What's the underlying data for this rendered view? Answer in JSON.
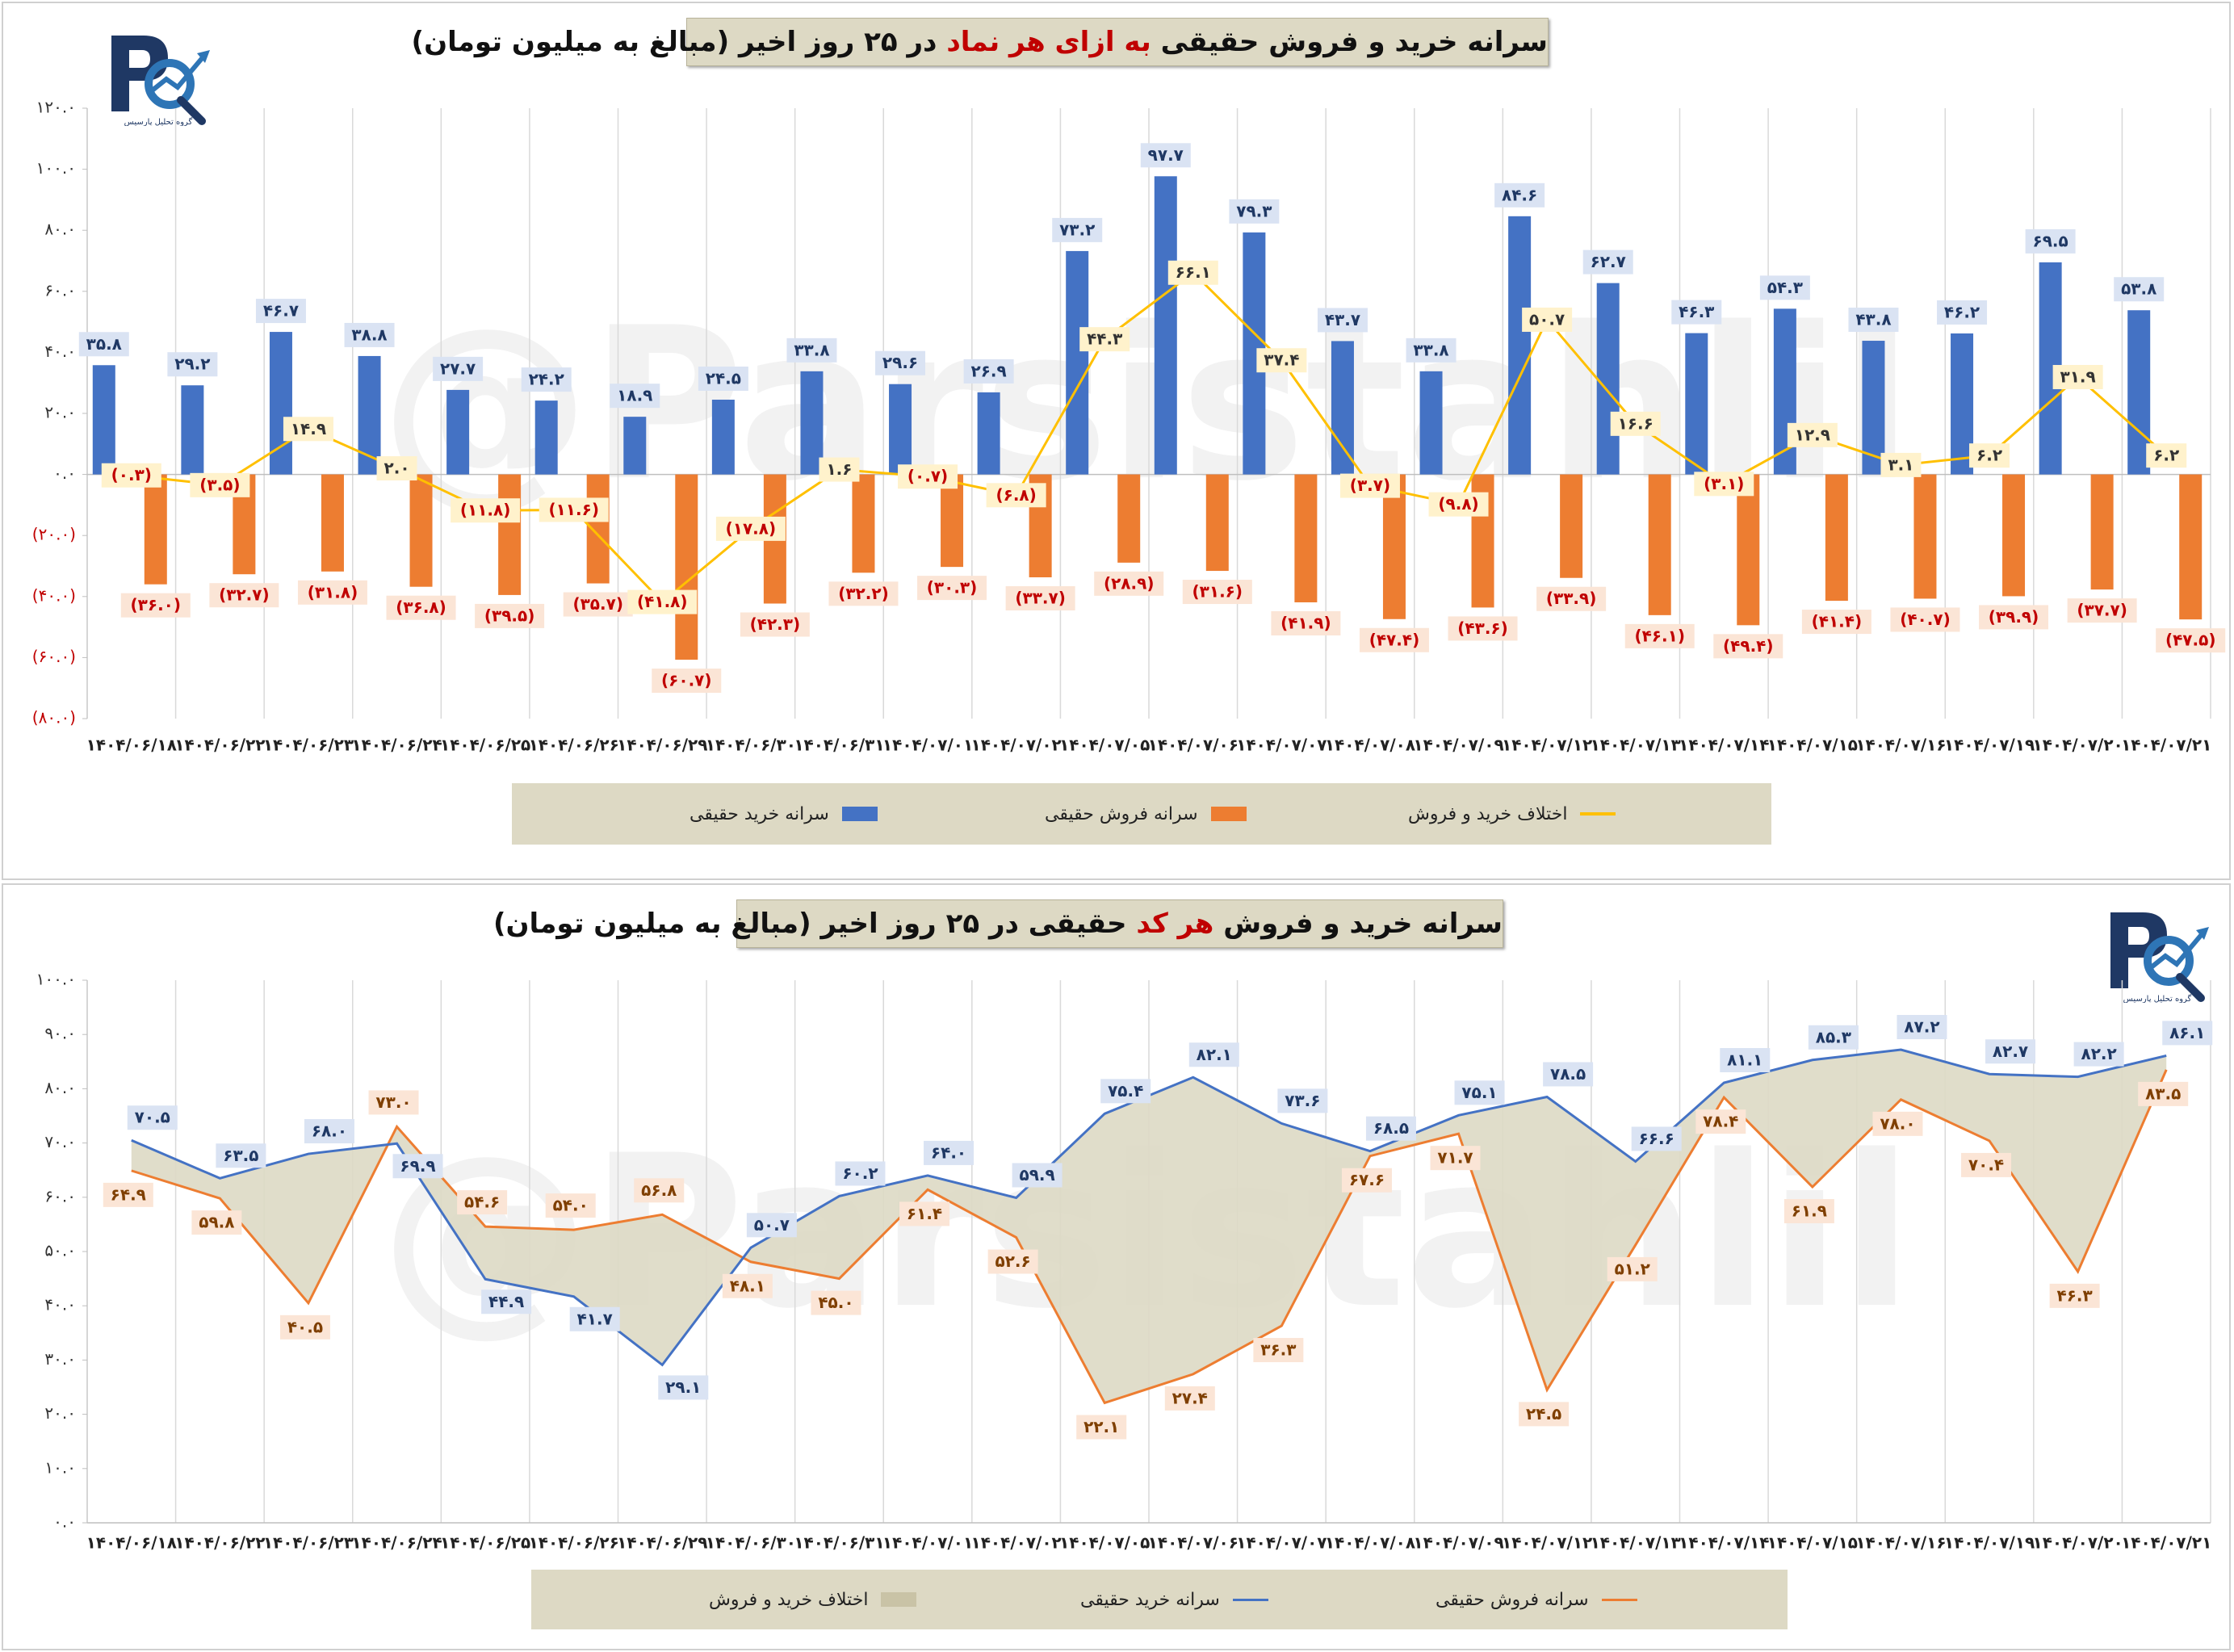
{
  "colors": {
    "buy": "#4472c4",
    "sell": "#ed7d31",
    "diff": "#ffc000",
    "area": "#ddd9c4",
    "neg": "#c00000"
  },
  "watermark": "@Parsistahlil",
  "logo": {
    "letters": "PC",
    "caption": "گروه تحلیل پارسیس"
  },
  "top": {
    "title_a": "سرانه خرید و فروش حقیقی ",
    "title_hl": "به ازای هر نماد",
    "title_b": " در ۲۵ روز اخیر (مبالغ به میلیون تومان)",
    "legend": {
      "buy": "سرانه خرید حقیقی",
      "sell": "سرانه فروش حقیقی",
      "diff": "اختلاف خرید و فروش"
    }
  },
  "bottom": {
    "title_a": "سرانه خرید و فروش ",
    "title_hl": "هر کد",
    "title_b": " حقیقی در ۲۵ روز اخیر (مبالغ به میلیون تومان)",
    "legend": {
      "area": "اختلاف خرید و فروش",
      "buy": "سرانه خرید حقیقی",
      "sell": "سرانه فروش حقیقی"
    }
  },
  "chart_data": [
    {
      "type": "bar",
      "title": "سرانه خرید و فروش حقیقی به ازای هر نماد در ۲۵ روز اخیر (مبالغ به میلیون تومان)",
      "categories": [
        "۱۴۰۴/۰۶/۱۸",
        "۱۴۰۴/۰۶/۲۲",
        "۱۴۰۴/۰۶/۲۳",
        "۱۴۰۴/۰۶/۲۴",
        "۱۴۰۴/۰۶/۲۵",
        "۱۴۰۴/۰۶/۲۶",
        "۱۴۰۴/۰۶/۲۹",
        "۱۴۰۴/۰۶/۳۰",
        "۱۴۰۴/۰۶/۳۱",
        "۱۴۰۴/۰۷/۰۱",
        "۱۴۰۴/۰۷/۰۲",
        "۱۴۰۴/۰۷/۰۵",
        "۱۴۰۴/۰۷/۰۶",
        "۱۴۰۴/۰۷/۰۷",
        "۱۴۰۴/۰۷/۰۸",
        "۱۴۰۴/۰۷/۰۹",
        "۱۴۰۴/۰۷/۱۲",
        "۱۴۰۴/۰۷/۱۳",
        "۱۴۰۴/۰۷/۱۴",
        "۱۴۰۴/۰۷/۱۵",
        "۱۴۰۴/۰۷/۱۶",
        "۱۴۰۴/۰۷/۱۹",
        "۱۴۰۴/۰۷/۲۰",
        "۱۴۰۴/۰۷/۲۱"
      ],
      "series": [
        {
          "name": "سرانه خرید حقیقی",
          "values": [
            35.8,
            29.2,
            46.7,
            38.8,
            27.7,
            24.2,
            18.9,
            24.5,
            33.8,
            29.6,
            26.9,
            73.2,
            97.7,
            79.3,
            43.7,
            33.8,
            84.6,
            62.7,
            46.3,
            54.3,
            43.8,
            46.2,
            69.5,
            53.8
          ]
        },
        {
          "name": "سرانه فروش حقیقی",
          "values": [
            -36.0,
            -32.7,
            -31.8,
            -36.8,
            -39.5,
            -35.7,
            -60.7,
            -42.3,
            -32.2,
            -30.3,
            -33.7,
            -28.9,
            -31.6,
            -41.9,
            -47.4,
            -43.6,
            -33.9,
            -46.1,
            -49.4,
            -41.4,
            -40.7,
            -39.9,
            -37.7,
            -47.5
          ]
        },
        {
          "name": "اختلاف خرید و فروش",
          "values": [
            -0.3,
            -3.5,
            14.9,
            2.0,
            -11.8,
            -11.6,
            -41.8,
            -17.8,
            1.6,
            -0.7,
            -6.8,
            44.3,
            66.1,
            37.4,
            -3.7,
            -9.8,
            50.7,
            16.6,
            -3.1,
            12.9,
            3.1,
            6.2,
            31.9,
            6.2
          ]
        }
      ],
      "buy_labels": [
        "۳۵.۸",
        "۲۹.۲",
        "۴۶.۷",
        "۳۸.۸",
        "۲۷.۷",
        "۲۴.۲",
        "۱۸.۹",
        "۲۴.۵",
        "۳۳.۸",
        "۲۹.۶",
        "۲۶.۹",
        "۷۳.۲",
        "۹۷.۷",
        "۷۹.۳",
        "۴۳.۷",
        "۳۳.۸",
        "۸۴.۶",
        "۶۲.۷",
        "۴۶.۳",
        "۵۴.۳",
        "۴۳.۸",
        "۴۶.۲",
        "۶۹.۵",
        "۵۳.۸"
      ],
      "sell_labels": [
        "(۳۶.۰)",
        "(۳۲.۷)",
        "(۳۱.۸)",
        "(۳۶.۸)",
        "(۳۹.۵)",
        "(۳۵.۷)",
        "(۶۰.۷)",
        "(۴۲.۳)",
        "(۳۲.۲)",
        "(۳۰.۳)",
        "(۳۳.۷)",
        "(۲۸.۹)",
        "(۳۱.۶)",
        "(۴۱.۹)",
        "(۴۷.۴)",
        "(۴۳.۶)",
        "(۳۳.۹)",
        "(۴۶.۱)",
        "(۴۹.۴)",
        "(۴۱.۴)",
        "(۴۰.۷)",
        "(۳۹.۹)",
        "(۳۷.۷)",
        "(۴۷.۵)"
      ],
      "diff_labels": [
        "(۰.۳)",
        "(۳.۵)",
        "۱۴.۹",
        "۲.۰",
        "(۱۱.۸)",
        "(۱۱.۶)",
        "(۴۱.۸)",
        "(۱۷.۸)",
        "۱.۶",
        "(۰.۷)",
        "(۶.۸)",
        "۴۴.۳",
        "۶۶.۱",
        "۳۷.۴",
        "(۳.۷)",
        "(۹.۸)",
        "۵۰.۷",
        "۱۶.۶",
        "(۳.۱)",
        "۱۲.۹",
        "۳.۱",
        "۶.۲",
        "۳۱.۹",
        "۶.۲"
      ],
      "yticks": [
        120,
        100,
        80,
        60,
        40,
        20,
        0,
        -20,
        -40,
        -60,
        -80
      ],
      "ytick_labels": [
        "۱۲۰.۰",
        "۱۰۰.۰",
        "۸۰.۰",
        "۶۰.۰",
        "۴۰.۰",
        "۲۰.۰",
        "۰.۰",
        "(۲۰.۰)",
        "(۴۰.۰)",
        "(۶۰.۰)",
        "(۸۰.۰)"
      ],
      "ylim": [
        -80,
        120
      ],
      "grid": "vertical",
      "legend_position": "bottom"
    },
    {
      "type": "line",
      "title": "سرانه خرید و فروش هر کد حقیقی در ۲۵ روز اخیر (مبالغ به میلیون تومان)",
      "categories": [
        "۱۴۰۴/۰۶/۱۸",
        "۱۴۰۴/۰۶/۲۲",
        "۱۴۰۴/۰۶/۲۳",
        "۱۴۰۴/۰۶/۲۴",
        "۱۴۰۴/۰۶/۲۵",
        "۱۴۰۴/۰۶/۲۶",
        "۱۴۰۴/۰۶/۲۹",
        "۱۴۰۴/۰۶/۳۰",
        "۱۴۰۴/۰۶/۳۱",
        "۱۴۰۴/۰۷/۰۱",
        "۱۴۰۴/۰۷/۰۲",
        "۱۴۰۴/۰۷/۰۵",
        "۱۴۰۴/۰۷/۰۶",
        "۱۴۰۴/۰۷/۰۷",
        "۱۴۰۴/۰۷/۰۸",
        "۱۴۰۴/۰۷/۰۹",
        "۱۴۰۴/۰۷/۱۲",
        "۱۴۰۴/۰۷/۱۳",
        "۱۴۰۴/۰۷/۱۴",
        "۱۴۰۴/۰۷/۱۵",
        "۱۴۰۴/۰۷/۱۶",
        "۱۴۰۴/۰۷/۱۹",
        "۱۴۰۴/۰۷/۲۰",
        "۱۴۰۴/۰۷/۲۱"
      ],
      "series": [
        {
          "name": "سرانه خرید حقیقی",
          "values": [
            70.5,
            63.5,
            68.0,
            69.9,
            44.9,
            41.7,
            29.1,
            50.7,
            60.2,
            64.0,
            59.9,
            75.4,
            82.1,
            73.6,
            68.5,
            75.1,
            78.5,
            66.6,
            81.1,
            85.3,
            87.2,
            82.7,
            82.2,
            86.1
          ]
        },
        {
          "name": "سرانه فروش حقیقی",
          "values": [
            64.9,
            59.8,
            40.5,
            73.0,
            54.6,
            54.0,
            56.8,
            48.1,
            45.0,
            61.4,
            52.6,
            22.1,
            27.4,
            36.3,
            67.6,
            71.7,
            24.5,
            51.2,
            78.4,
            61.9,
            78.0,
            70.4,
            46.3,
            83.5
          ]
        }
      ],
      "buy_labels": [
        "۷۰.۵",
        "۶۳.۵",
        "۶۸.۰",
        "۶۹.۹",
        "۴۴.۹",
        "۴۱.۷",
        "۲۹.۱",
        "۵۰.۷",
        "۶۰.۲",
        "۶۴.۰",
        "۵۹.۹",
        "۷۵.۴",
        "۸۲.۱",
        "۷۳.۶",
        "۶۸.۵",
        "۷۵.۱",
        "۷۸.۵",
        "۶۶.۶",
        "۸۱.۱",
        "۸۵.۳",
        "۸۷.۲",
        "۸۲.۷",
        "۸۲.۲",
        "۸۶.۱"
      ],
      "sell_labels": [
        "۶۴.۹",
        "۵۹.۸",
        "۴۰.۵",
        "۷۳.۰",
        "۵۴.۶",
        "۵۴.۰",
        "۵۶.۸",
        "۴۸.۱",
        "۴۵.۰",
        "۶۱.۴",
        "۵۲.۶",
        "۲۲.۱",
        "۲۷.۴",
        "۳۶.۳",
        "۶۷.۶",
        "۷۱.۷",
        "۲۴.۵",
        "۵۱.۲",
        "۷۸.۴",
        "۶۱.۹",
        "۷۸.۰",
        "۷۰.۴",
        "۴۶.۳",
        "۸۳.۵"
      ],
      "yticks": [
        100,
        90,
        80,
        70,
        60,
        50,
        40,
        30,
        20,
        10,
        0
      ],
      "ytick_labels": [
        "۱۰۰.۰",
        "۹۰.۰",
        "۸۰.۰",
        "۷۰.۰",
        "۶۰.۰",
        "۵۰.۰",
        "۴۰.۰",
        "۳۰.۰",
        "۲۰.۰",
        "۱۰.۰",
        "۰.۰"
      ],
      "ylim": [
        0,
        100
      ],
      "grid": "vertical",
      "legend_position": "bottom"
    }
  ]
}
